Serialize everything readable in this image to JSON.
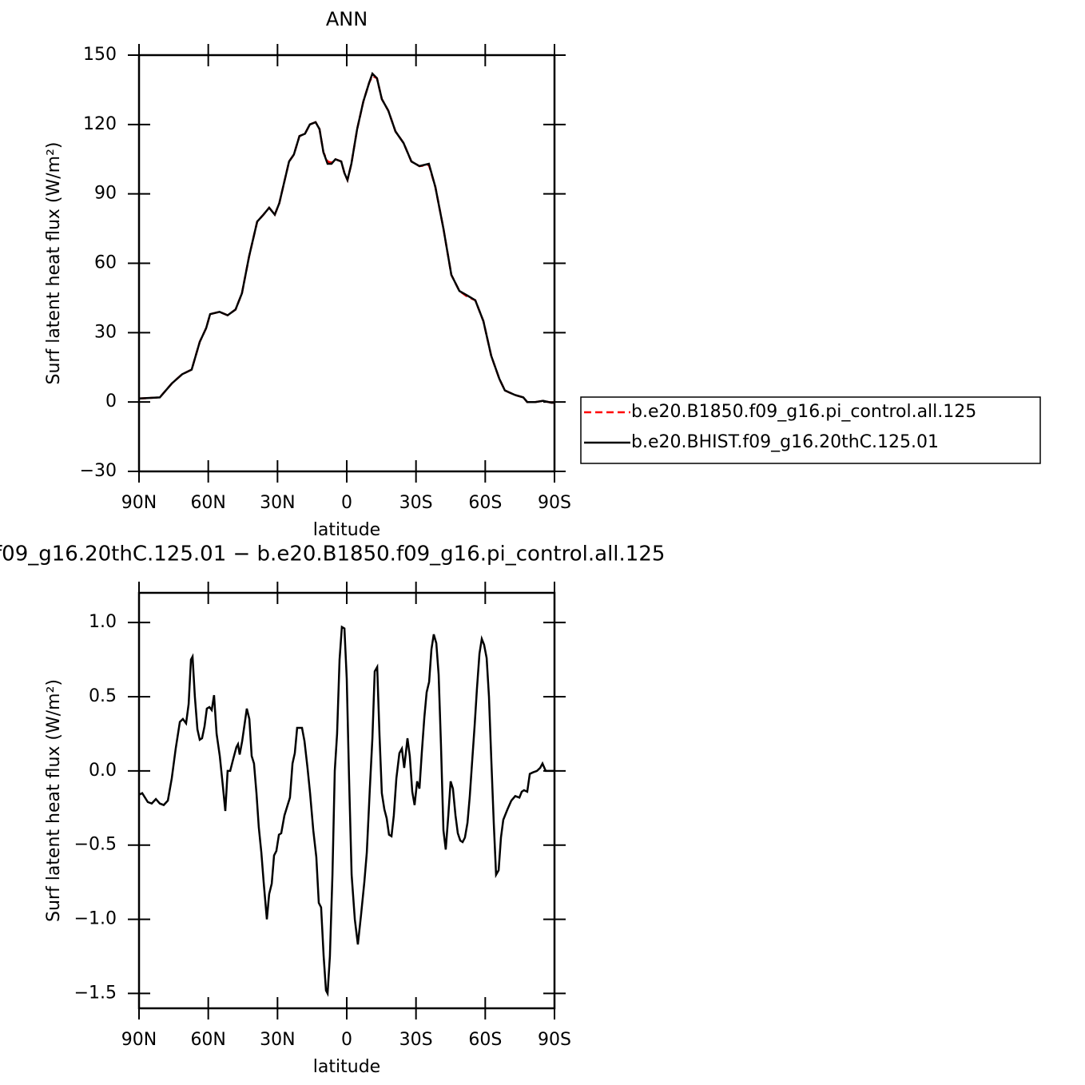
{
  "chart_data": [
    {
      "type": "line",
      "title": "ANN",
      "xlabel": "latitude",
      "ylabel": "Surf latent heat flux (W/m²)",
      "xlim": [
        90,
        -90
      ],
      "xticks": [
        {
          "value": 90,
          "label": "90N"
        },
        {
          "value": 60,
          "label": "60N"
        },
        {
          "value": 30,
          "label": "30N"
        },
        0,
        {
          "value": -30,
          "label": "30S"
        },
        {
          "value": -60,
          "label": "60S"
        },
        {
          "value": -90,
          "label": "90S"
        }
      ],
      "ylim": [
        -30,
        150
      ],
      "yticks": [
        {
          "value": -30,
          "label": "−30"
        },
        0,
        30,
        60,
        90,
        120,
        150
      ],
      "legend": "outside-right",
      "x": [
        90,
        81.0,
        75.8,
        71.3,
        67.2,
        63.7,
        60.9,
        59.2,
        55.1,
        51.6,
        48.2,
        45.4,
        42.3,
        38.8,
        36.1,
        33.6,
        31.2,
        29.2,
        25.0,
        22.9,
        20.5,
        18.1,
        16.0,
        13.5,
        11.8,
        10.1,
        8.3,
        6.6,
        4.9,
        2.4,
        1.0,
        -0.3,
        -2.0,
        -4.5,
        -7.2,
        -9.7,
        -11.1,
        -13.1,
        -15.2,
        -18.0,
        -21.1,
        -24.6,
        -28.0,
        -31.5,
        -35.6,
        -38.4,
        -41.9,
        -45.3,
        -48.8,
        -52.3,
        -55.7,
        -59.2,
        -62.6,
        -66.1,
        -68.5,
        -73.0,
        -76.5,
        -78.2,
        -81.7,
        -85.1,
        -88.6,
        -90
      ],
      "series": [
        {
          "name": "b.e20.B1850.f09_g16.pi_control.all.125",
          "color": "#ff0000",
          "dash": true,
          "values": [
            1.5,
            2,
            8,
            12,
            14,
            26,
            32,
            38,
            39,
            37.5,
            40,
            47,
            63,
            78,
            81,
            84,
            81,
            86,
            104,
            107,
            115,
            116,
            120,
            121,
            118,
            108,
            104,
            103.5,
            105,
            104,
            99,
            96,
            103,
            118,
            130,
            138,
            141,
            140,
            131,
            126,
            117,
            112,
            104,
            102,
            102.5,
            93,
            75,
            55,
            48,
            45.5,
            44,
            35,
            20,
            10,
            5,
            3,
            2,
            0,
            0,
            0.5,
            -0.3,
            -0.3
          ]
        },
        {
          "name": "b.e20.BHIST.f09_g16.20thC.125.01",
          "color": "#000000",
          "values": [
            1.5,
            2,
            8,
            12,
            14,
            26,
            32,
            38,
            39,
            37.5,
            40,
            47,
            63,
            78,
            81,
            84,
            81,
            86,
            104,
            107,
            115,
            116,
            120,
            121,
            118,
            108,
            103,
            103,
            105,
            104,
            99,
            96,
            103,
            118,
            130,
            138,
            142,
            140,
            131,
            126,
            117,
            112,
            104,
            102,
            103,
            93,
            75,
            55,
            48,
            46,
            44,
            35,
            20,
            10,
            5,
            3,
            2,
            0,
            0,
            0.5,
            -0.3,
            -0.3
          ]
        }
      ]
    },
    {
      "type": "line",
      "title": "f09_g16.20thC.125.01 − b.e20.B1850.f09_g16.pi_control.all.125",
      "xlabel": "latitude",
      "ylabel": "Surf latent heat flux (W/m²)",
      "xlim": [
        90,
        -90
      ],
      "xticks": [
        {
          "value": 90,
          "label": "90N"
        },
        {
          "value": 60,
          "label": "60N"
        },
        {
          "value": 30,
          "label": "30N"
        },
        0,
        {
          "value": -30,
          "label": "30S"
        },
        {
          "value": -60,
          "label": "60S"
        },
        {
          "value": -90,
          "label": "90S"
        }
      ],
      "ylim": [
        -1.6,
        1.2
      ],
      "yticks": [
        {
          "value": -1.5,
          "label": "−1.5"
        },
        {
          "value": -1.0,
          "label": "−1.0"
        },
        {
          "value": -0.5,
          "label": "−0.5"
        },
        {
          "value": 0,
          "label": "0.0"
        },
        0.5,
        {
          "value": 1.0,
          "label": "1.0"
        }
      ],
      "x": [
        90.0,
        88.6,
        86.2,
        84.5,
        82.7,
        81.0,
        79.3,
        77.5,
        75.8,
        74.1,
        72.3,
        71.0,
        69.6,
        68.5,
        67.5,
        66.8,
        65.8,
        64.7,
        63.7,
        62.7,
        61.6,
        60.6,
        59.5,
        58.5,
        57.5,
        56.4,
        55.0,
        53.7,
        52.6,
        51.6,
        50.5,
        49.2,
        47.8,
        47.1,
        46.4,
        45.3,
        44.3,
        43.3,
        42.2,
        41.2,
        40.2,
        39.1,
        38.1,
        37.0,
        36.0,
        34.6,
        33.6,
        32.5,
        31.5,
        30.5,
        29.4,
        28.4,
        27.0,
        25.6,
        24.6,
        23.5,
        22.5,
        21.5,
        20.4,
        19.4,
        18.3,
        17.0,
        15.9,
        14.5,
        13.2,
        12.1,
        11.1,
        10.0,
        9.0,
        8.3,
        7.3,
        6.2,
        5.2,
        4.2,
        3.1,
        2.1,
        1.0,
        0.0,
        -1.0,
        -2.1,
        -3.5,
        -4.8,
        -6.2,
        -7.6,
        -8.7,
        -10.0,
        -11.1,
        -12.1,
        -13.2,
        -14.2,
        -15.2,
        -16.3,
        -17.3,
        -18.3,
        -19.4,
        -20.4,
        -21.5,
        -22.8,
        -23.9,
        -24.9,
        -26.3,
        -27.3,
        -28.4,
        -29.4,
        -30.5,
        -31.5,
        -32.5,
        -33.6,
        -34.6,
        -35.7,
        -36.7,
        -37.7,
        -38.8,
        -39.8,
        -40.8,
        -41.9,
        -42.9,
        -44.0,
        -45.0,
        -46.0,
        -47.1,
        -48.1,
        -49.2,
        -50.2,
        -51.2,
        -52.3,
        -53.3,
        -54.3,
        -55.4,
        -56.4,
        -57.5,
        -58.5,
        -59.5,
        -60.6,
        -61.6,
        -62.7,
        -63.7,
        -64.7,
        -65.8,
        -66.8,
        -67.8,
        -69.6,
        -71.3,
        -73.0,
        -74.8,
        -75.8,
        -76.8,
        -78.2,
        -79.3,
        -80.7,
        -82.4,
        -83.8,
        -84.8,
        -86.2,
        -88.6,
        -90.0
      ],
      "series": [
        {
          "color": "#000000",
          "values": [
            -0.16,
            -0.15,
            -0.21,
            -0.22,
            -0.19,
            -0.22,
            -0.23,
            -0.2,
            -0.05,
            0.15,
            0.33,
            0.35,
            0.32,
            0.45,
            0.75,
            0.77,
            0.5,
            0.28,
            0.21,
            0.22,
            0.3,
            0.42,
            0.43,
            0.41,
            0.51,
            0.25,
            0.1,
            -0.1,
            -0.27,
            0.0,
            0.0,
            0.08,
            0.16,
            0.18,
            0.11,
            0.2,
            0.31,
            0.42,
            0.35,
            0.1,
            0.05,
            -0.15,
            -0.38,
            -0.55,
            -0.75,
            -1.0,
            -0.83,
            -0.76,
            -0.57,
            -0.54,
            -0.43,
            -0.42,
            -0.3,
            -0.23,
            -0.18,
            0.05,
            0.12,
            0.29,
            0.29,
            0.29,
            0.2,
            0.02,
            -0.15,
            -0.4,
            -0.58,
            -0.89,
            -0.92,
            -1.25,
            -1.48,
            -1.5,
            -1.25,
            -0.7,
            0.0,
            0.25,
            0.75,
            0.97,
            0.96,
            0.62,
            -0.05,
            -0.7,
            -1.0,
            -1.17,
            -0.97,
            -0.75,
            -0.55,
            -0.12,
            0.22,
            0.67,
            0.7,
            0.24,
            -0.15,
            -0.26,
            -0.32,
            -0.43,
            -0.44,
            -0.3,
            -0.05,
            0.12,
            0.15,
            0.02,
            0.22,
            0.1,
            -0.14,
            -0.23,
            -0.07,
            -0.12,
            0.12,
            0.36,
            0.53,
            0.6,
            0.82,
            0.92,
            0.86,
            0.65,
            0.18,
            -0.4,
            -0.53,
            -0.3,
            -0.07,
            -0.12,
            -0.3,
            -0.42,
            -0.47,
            -0.48,
            -0.45,
            -0.35,
            -0.17,
            0.06,
            0.3,
            0.55,
            0.79,
            0.89,
            0.85,
            0.76,
            0.5,
            0.05,
            -0.35,
            -0.7,
            -0.67,
            -0.45,
            -0.33,
            -0.26,
            -0.2,
            -0.17,
            -0.18,
            -0.14,
            -0.13,
            -0.14,
            -0.02,
            -0.01,
            0.0,
            0.02,
            0.05,
            0.0,
            0.0,
            0.0
          ]
        }
      ]
    }
  ]
}
